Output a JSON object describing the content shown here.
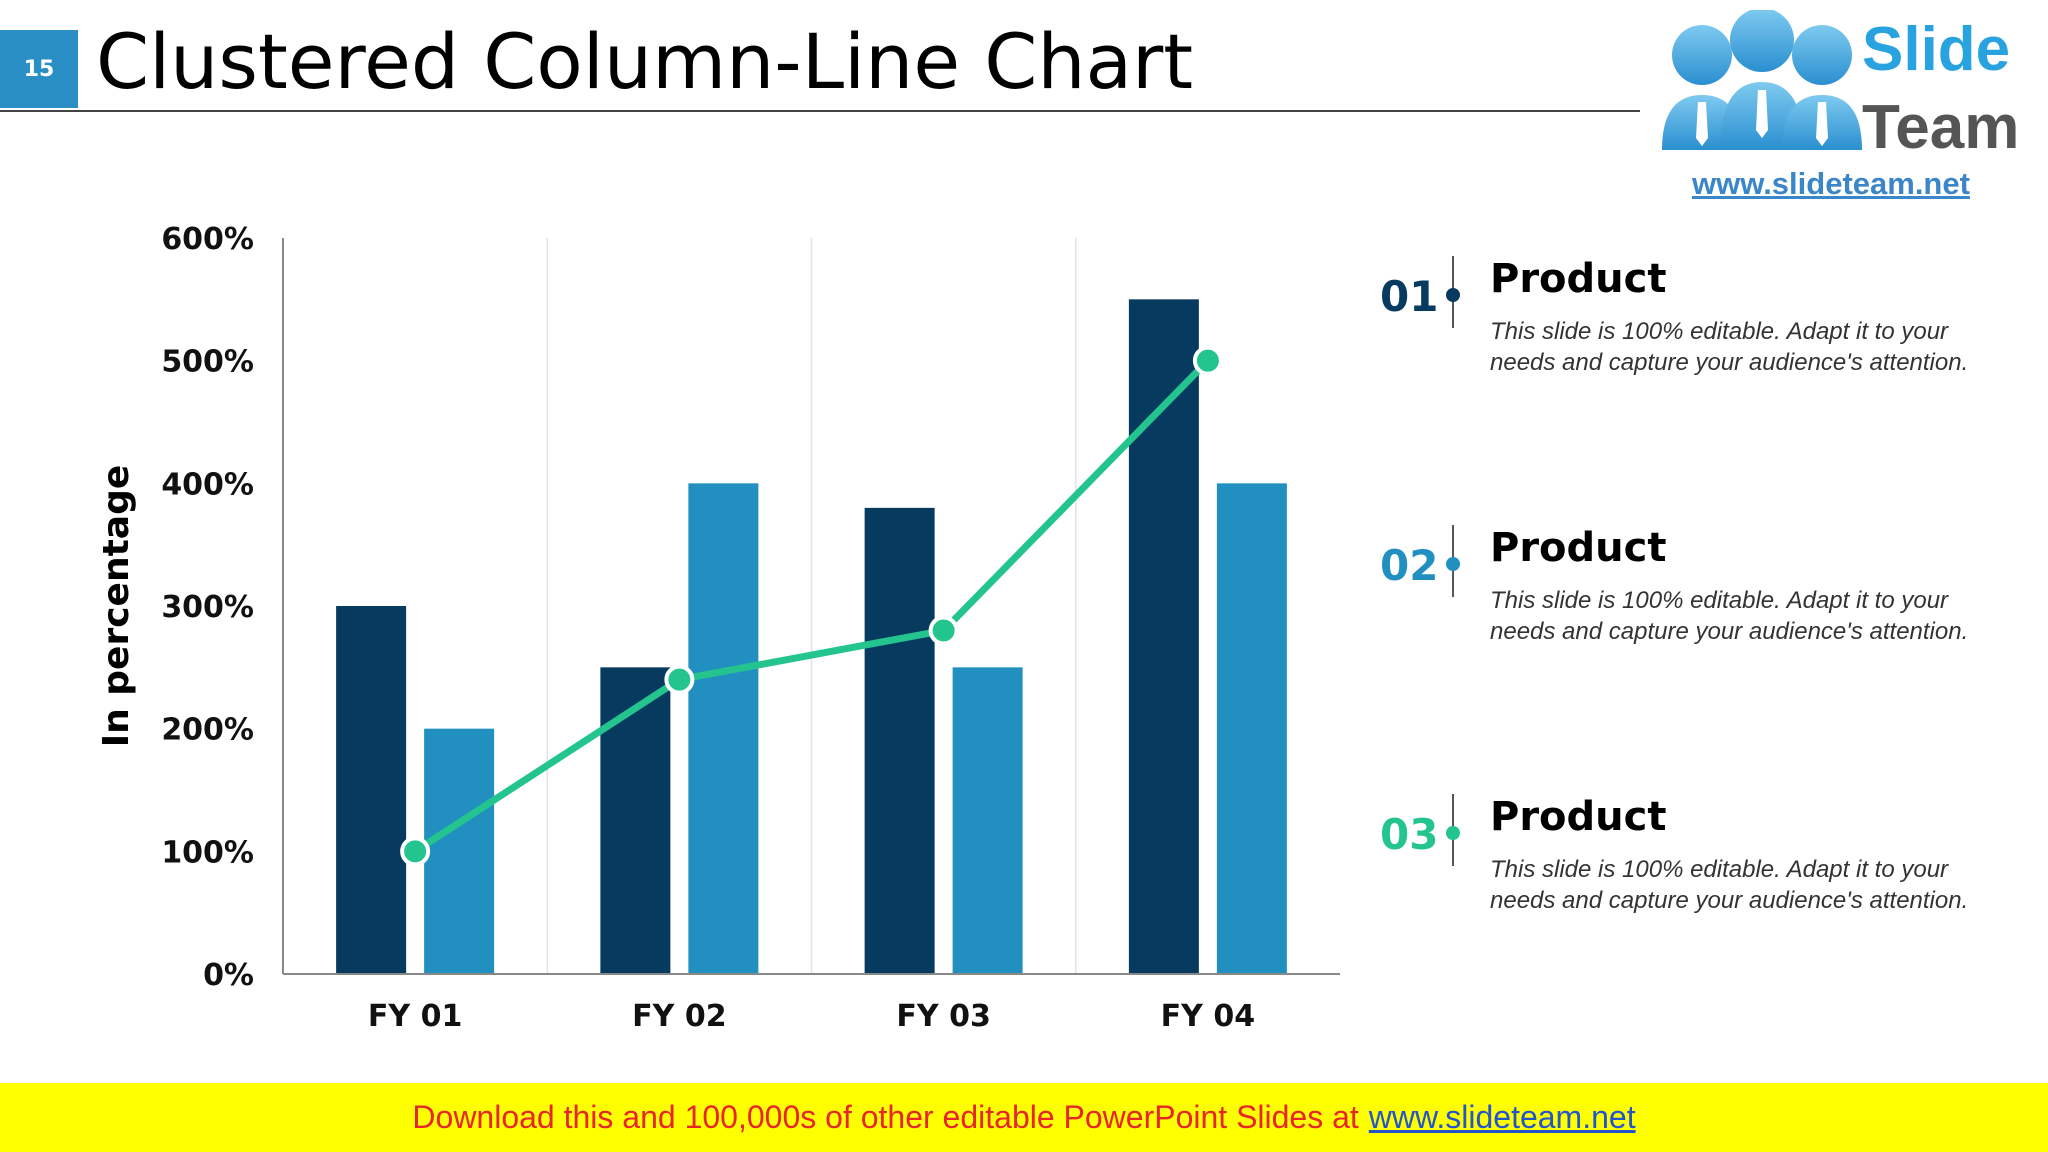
{
  "slide_number": "15",
  "title": "Clustered Column-Line Chart",
  "logo": {
    "line1": "Slide",
    "line2": "Team",
    "url": "www.slideteam.net"
  },
  "chart_data": {
    "type": "bar",
    "categories": [
      "FY 01",
      "FY 02",
      "FY 03",
      "FY 04"
    ],
    "series": [
      {
        "type": "bar",
        "values": [
          300,
          250,
          380,
          550
        ],
        "color": "#063a5e"
      },
      {
        "type": "bar",
        "values": [
          200,
          400,
          250,
          400
        ],
        "color": "#2190c0"
      },
      {
        "type": "line",
        "values": [
          100,
          240,
          280,
          500
        ],
        "color": "#24c48e"
      }
    ],
    "ylabel": "In percentage",
    "ylim": [
      0,
      600
    ],
    "yticks": [
      0,
      100,
      200,
      300,
      400,
      500,
      600
    ],
    "ytick_labels": [
      "0%",
      "100%",
      "200%",
      "300%",
      "400%",
      "500%",
      "600%"
    ],
    "grid": "vertical category separators"
  },
  "legend": [
    {
      "num": "01",
      "title": "Product",
      "desc": "This slide is 100% editable. Adapt it to your needs and capture your audience's attention.",
      "color": "#063a5e"
    },
    {
      "num": "02",
      "title": "Product",
      "desc": "This slide is 100% editable. Adapt it to your needs and capture your audience's attention.",
      "color": "#2190c0"
    },
    {
      "num": "03",
      "title": "Product",
      "desc": "This slide is 100% editable. Adapt it to your needs and capture your audience's attention.",
      "color": "#24c48e"
    }
  ],
  "footer": {
    "text": "Download this and 100,000s of other editable PowerPoint Slides at",
    "link": "www.slideteam.net"
  }
}
